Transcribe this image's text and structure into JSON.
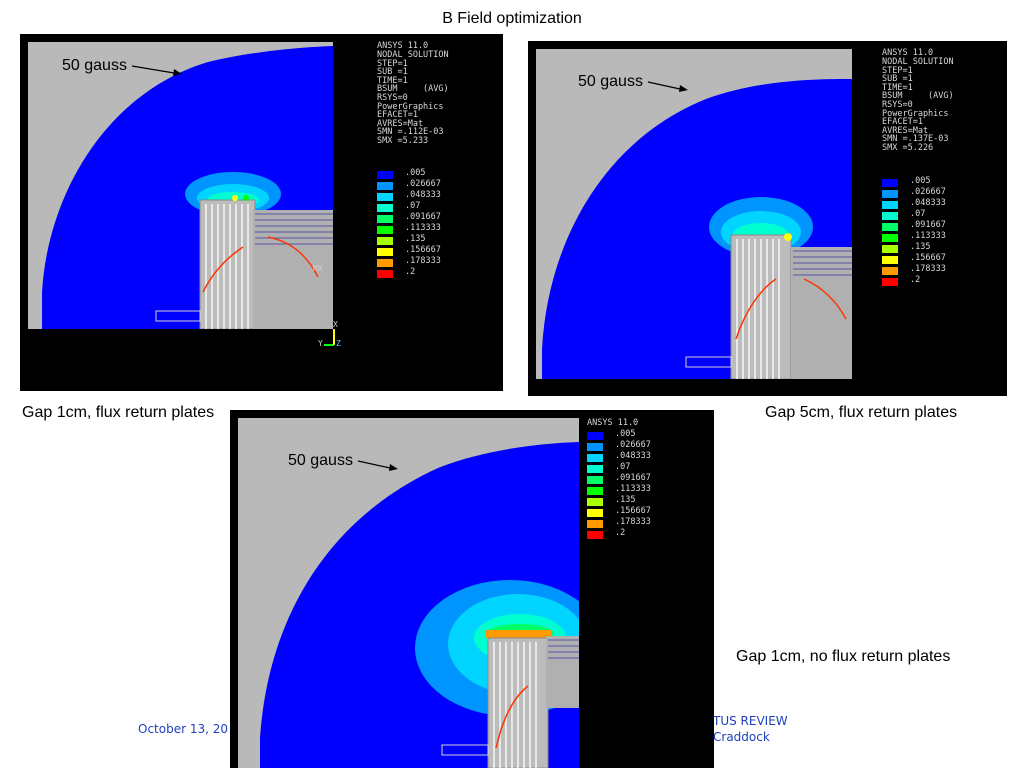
{
  "slide_title": "B Field optimization",
  "captions": {
    "panel1": "Gap 1cm, flux return plates",
    "panel2": "Gap 5cm, flux return plates",
    "panel3": "Gap 1cm, no flux return plates"
  },
  "footer": {
    "date": "October 13, 20",
    "review": "TUS REVIEW",
    "author": "Craddock"
  },
  "annotation_label": "50 gauss",
  "ansys_header": "ANSYS 11.0",
  "panel1_info": "NODAL SOLUTION\nSTEP=1\nSUB =1\nTIME=1\nBSUM     (AVG)\nRSYS=0\nPowerGraphics\nEFACET=1\nAVRES=Mat\nSMN =.112E-03\nSMX =5.233",
  "panel2_info": "NODAL SOLUTION\nSTEP=1\nSUB =1\nTIME=1\nBSUM     (AVG)\nRSYS=0\nPowerGraphics\nEFACET=1\nAVRES=Mat\nSMN =.137E-03\nSMX =5.226",
  "legend": [
    {
      "value": ".005",
      "color": "#0000ff"
    },
    {
      "value": ".026667",
      "color": "#0094ff"
    },
    {
      "value": ".048333",
      "color": "#00d4ff"
    },
    {
      "value": ".07",
      "color": "#00ffd0"
    },
    {
      "value": ".091667",
      "color": "#00ff66"
    },
    {
      "value": ".113333",
      "color": "#00ff00"
    },
    {
      "value": ".135",
      "color": "#a8ff00"
    },
    {
      "value": ".156667",
      "color": "#ffff00"
    },
    {
      "value": ".178333",
      "color": "#ff9a00"
    },
    {
      "value": ".2",
      "color": "#ff0000"
    }
  ],
  "axis_triad": {
    "x": "X",
    "y": "Y",
    "z": "Z"
  },
  "mx_marker": "MX"
}
